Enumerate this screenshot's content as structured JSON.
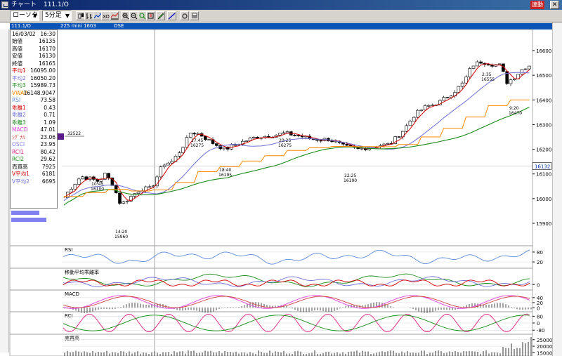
{
  "window": {
    "title": "チャート",
    "symbol": "111.1/O",
    "link_label": "連動",
    "close_label": "✕"
  },
  "toolbar": {
    "chart_type": "ローソク",
    "timeframe": "5分足",
    "icons": [
      "candle-type-icon",
      "bar-type-icon",
      "line-type-icon",
      "point-figure-icon",
      "indicator-add-icon",
      "zoom-in-icon",
      "zoom-out-icon",
      "search-icon",
      "compare-icon",
      "drawing-pen-icon",
      "trendline-icon",
      "settings-icon",
      "print-icon"
    ]
  },
  "header": {
    "symbol": "111.1/O",
    "instrument": "225 mini 1603",
    "exchange": "OSE"
  },
  "info_panel": {
    "date": "16/03/02",
    "time": "16:30",
    "rows": [
      {
        "label": "始値",
        "value": "16135",
        "color": "#000000"
      },
      {
        "label": "高値",
        "value": "16170",
        "color": "#000000"
      },
      {
        "label": "安値",
        "value": "16130",
        "color": "#000000"
      },
      {
        "label": "終値",
        "value": "16165",
        "color": "#000000"
      },
      {
        "label": "平均1",
        "value": "16095.00",
        "color": "#d40000"
      },
      {
        "label": "平均2",
        "value": "16050.20",
        "color": "#7070d8"
      },
      {
        "label": "平均3",
        "value": "15989.73",
        "color": "#1a8a1a"
      },
      {
        "label": "VWAP",
        "value": "16148.9047",
        "color": "#ff8800"
      },
      {
        "label": "RSI",
        "value": "73.58",
        "color": "#5a8ad8"
      },
      {
        "label": "乖離1",
        "value": "0.43",
        "color": "#d40000"
      },
      {
        "label": "乖離2",
        "value": "0.71",
        "color": "#7070d8"
      },
      {
        "label": "乖離3",
        "value": "1.09",
        "color": "#1a8a1a"
      },
      {
        "label": "MACD",
        "value": "47.01",
        "color": "#e040e0"
      },
      {
        "label": "ｼｸﾞﾅﾙ",
        "value": "23.06",
        "color": "#d04040"
      },
      {
        "label": "OSCI",
        "value": "23.95",
        "color": "#8080ff"
      },
      {
        "label": "RCI1",
        "value": "80.42",
        "color": "#e02080"
      },
      {
        "label": "RCI2",
        "value": "29.62",
        "color": "#1a8a1a"
      },
      {
        "label": "売買高",
        "value": "7925",
        "color": "#000000"
      },
      {
        "label": "V平均1",
        "value": "6181",
        "color": "#d40000"
      },
      {
        "label": "V平均2",
        "value": "6695",
        "color": "#7070d8"
      }
    ]
  },
  "main_chart": {
    "y_ticks": [
      "16600",
      "16500",
      "16400",
      "16300",
      "16200",
      "16100",
      "16000",
      "15900"
    ],
    "current_price": "16132",
    "marker_label": "32522",
    "annotations": [
      {
        "time": "10:45",
        "price": "16100"
      },
      {
        "time": "14:20",
        "price": "15960"
      },
      {
        "time": "17:45",
        "price": "16275"
      },
      {
        "time": "18:40",
        "price": "16195"
      },
      {
        "time": "20:25",
        "price": "16275"
      },
      {
        "time": "22:25",
        "price": "16190"
      },
      {
        "time": "2:35",
        "price": "16555"
      },
      {
        "time": "9:20",
        "price": "16470"
      }
    ]
  },
  "panes": {
    "rsi": {
      "title": "RSI",
      "ticks": [
        "80",
        "20"
      ]
    },
    "deviation": {
      "title": "移動平均乖離率",
      "ticks": [
        "0"
      ]
    },
    "macd": {
      "title": "MACD",
      "ticks": [
        "40",
        "20",
        "0"
      ]
    },
    "rci": {
      "title": "RCI",
      "ticks": [
        "80",
        "0",
        "-80"
      ]
    },
    "volume": {
      "title": "売買高",
      "ticks": [
        "25000",
        "20000",
        "15000"
      ]
    }
  },
  "colors": {
    "ma1": "#d40000",
    "ma2": "#7070d8",
    "ma3": "#1a8a1a",
    "vwap": "#ff8800",
    "rsi": "#5a8ad8"
  }
}
